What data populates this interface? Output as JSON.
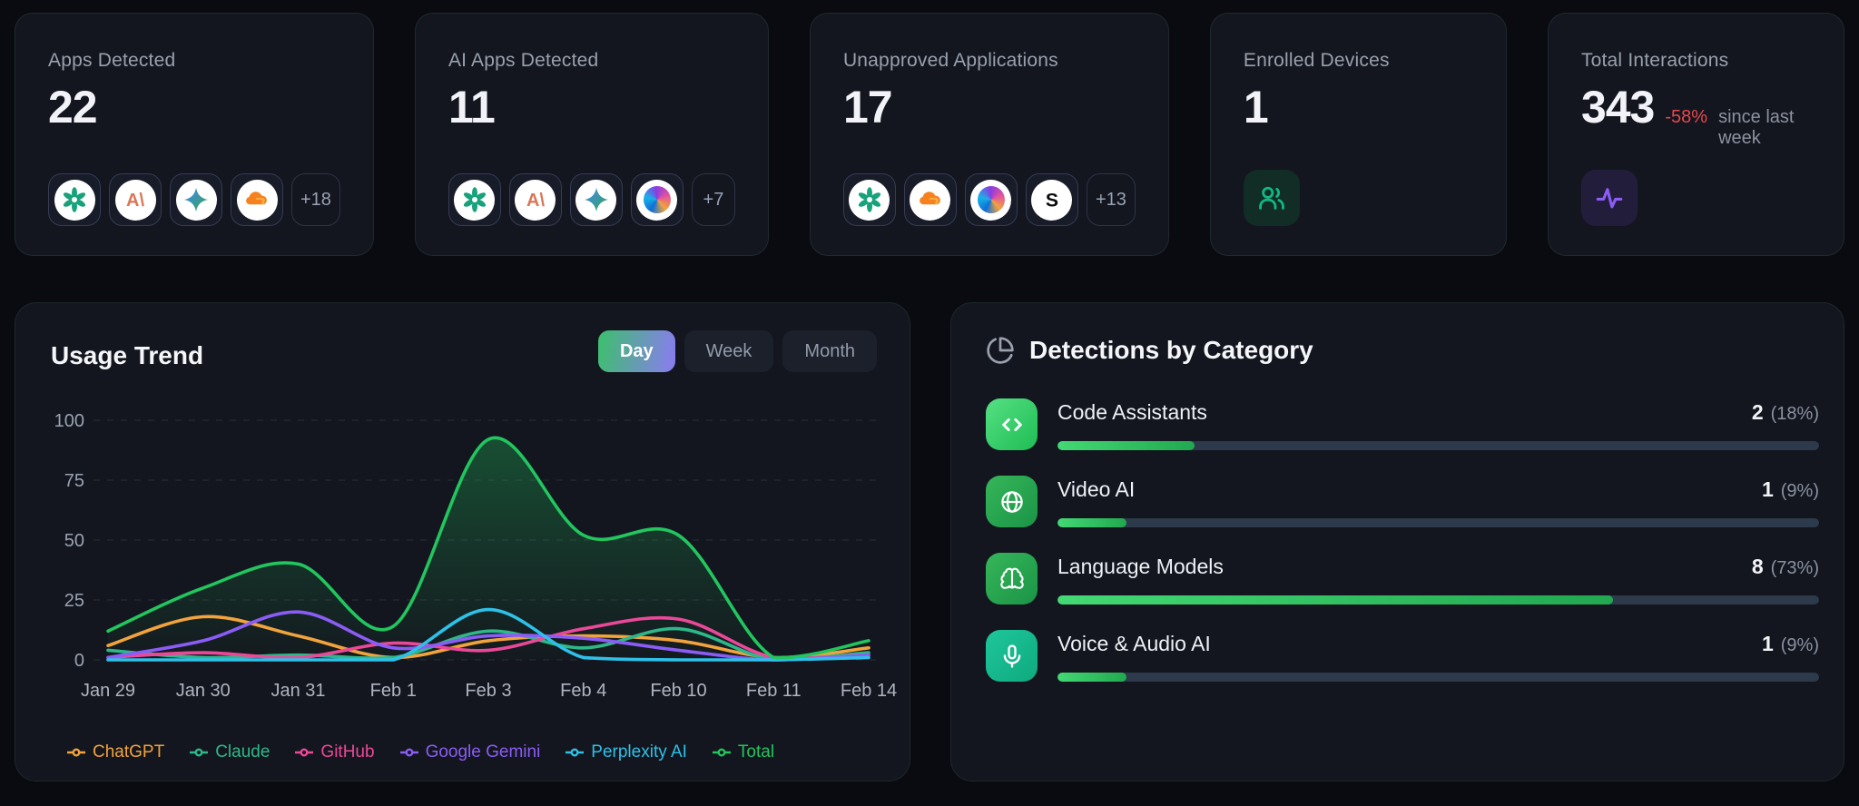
{
  "theme": {
    "page_bg": "#0a0b10",
    "card_bg": "#13161e",
    "accent_green": "#22c55e",
    "negative_red": "#e5484d",
    "toggle_gradient": [
      "#3cc06c",
      "#8b7bf1"
    ],
    "bar_track": "#2c3a4b",
    "bar_fill": "#2ecb5b"
  },
  "cards": [
    {
      "title": "Apps Detected",
      "value": "22",
      "more": "+18",
      "apps": [
        {
          "id": "chatgpt",
          "name": "ChatGPT"
        },
        {
          "id": "claude",
          "name": "Claude"
        },
        {
          "id": "gemini",
          "name": "Gemini"
        },
        {
          "id": "cloudflare",
          "name": "Cloudflare"
        }
      ]
    },
    {
      "title": "AI Apps Detected",
      "value": "11",
      "more": "+7",
      "apps": [
        {
          "id": "chatgpt",
          "name": "ChatGPT"
        },
        {
          "id": "claude",
          "name": "Claude"
        },
        {
          "id": "gemini",
          "name": "Gemini"
        },
        {
          "id": "copilot",
          "name": "Copilot"
        }
      ]
    },
    {
      "title": "Unapproved Applications",
      "value": "17",
      "more": "+13",
      "apps": [
        {
          "id": "chatgpt",
          "name": "ChatGPT"
        },
        {
          "id": "cloudflare",
          "name": "Cloudflare"
        },
        {
          "id": "copilot",
          "name": "Copilot"
        },
        {
          "id": "s-app",
          "name": "S"
        }
      ]
    },
    {
      "title": "Enrolled Devices",
      "value": "1",
      "icon": "users-icon"
    },
    {
      "title": "Total Interactions",
      "value": "343",
      "delta": "-58%",
      "delta_note": "since last week",
      "icon": "activity-icon"
    }
  ],
  "usage_trend": {
    "title": "Usage Trend",
    "toggle": {
      "options": [
        "Day",
        "Week",
        "Month"
      ],
      "active": "Day"
    }
  },
  "chart_data": {
    "type": "line",
    "title": "Usage Trend",
    "categories": [
      "Jan 29",
      "Jan 30",
      "Jan 31",
      "Feb 1",
      "Feb 3",
      "Feb 4",
      "Feb 10",
      "Feb 11",
      "Feb 14"
    ],
    "series": [
      {
        "name": "ChatGPT",
        "color": "#f2a33c",
        "values": [
          6,
          18,
          10,
          1,
          8,
          10,
          8,
          1,
          5
        ]
      },
      {
        "name": "Claude",
        "color": "#2eb88a",
        "values": [
          4,
          1,
          2,
          1,
          12,
          5,
          13,
          0,
          3
        ]
      },
      {
        "name": "GitHub",
        "color": "#ec4899",
        "values": [
          1,
          3,
          1,
          7,
          4,
          13,
          17,
          1,
          2
        ]
      },
      {
        "name": "Google Gemini",
        "color": "#8b5cf6",
        "values": [
          1,
          8,
          20,
          5,
          10,
          9,
          4,
          0,
          2
        ]
      },
      {
        "name": "Perplexity AI",
        "color": "#2ec0e8",
        "values": [
          0,
          0,
          0,
          0,
          21,
          1,
          0,
          0,
          1
        ]
      },
      {
        "name": "Total",
        "color": "#22c55e",
        "values": [
          12,
          30,
          40,
          14,
          92,
          52,
          52,
          1,
          8
        ],
        "area": true
      }
    ],
    "ylim": [
      0,
      100
    ],
    "yticks": [
      0,
      25,
      50,
      75,
      100
    ],
    "grid": "dashed-horizontal",
    "legend_position": "bottom"
  },
  "detections": {
    "title": "Detections by Category",
    "header_icon": "pie-chart-icon",
    "rows": [
      {
        "icon": "code",
        "label": "Code Assistants",
        "count": "2",
        "percent_label": "(18%)",
        "percent": 18
      },
      {
        "icon": "globe",
        "label": "Video AI",
        "count": "1",
        "percent_label": "(9%)",
        "percent": 9
      },
      {
        "icon": "brain",
        "label": "Language Models",
        "count": "8",
        "percent_label": "(73%)",
        "percent": 73
      },
      {
        "icon": "mic",
        "label": "Voice & Audio AI",
        "count": "1",
        "percent_label": "(9%)",
        "percent": 9
      }
    ]
  }
}
